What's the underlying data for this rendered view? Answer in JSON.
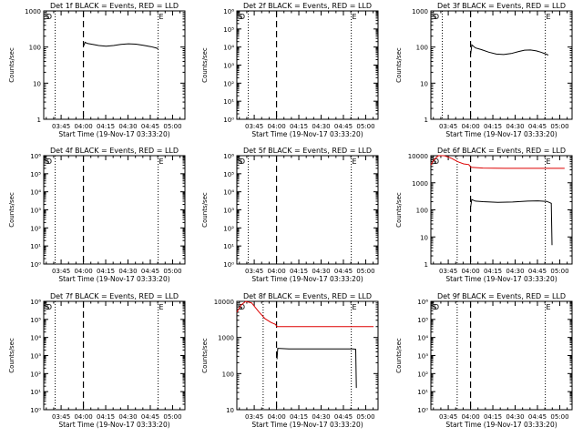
{
  "x_tick_labels": [
    "03:45",
    "04:00",
    "04:15",
    "04:30",
    "04:45",
    "05:00"
  ],
  "x_axis_label": "Start Time (19-Nov-17 03:33:20)",
  "y_axis_label": "Counts/sec",
  "colors": {
    "events": "#000000",
    "lld": "#dd0000",
    "axes": "#000000"
  },
  "chart_data": [
    {
      "type": "line",
      "title": "Det 1f BLACK = Events, RED = LLD",
      "yscale": "log",
      "x_unit": "minutes after 03:33:20",
      "xlim": [
        0,
        95
      ],
      "ylim": [
        1,
        1000
      ],
      "y_tick_labels": [
        "1",
        "10",
        "100",
        "1000"
      ],
      "dotted_lines_x": [
        7.7,
        77
      ],
      "dashed_line_x": [
        26.7
      ],
      "markers": [
        {
          "x": 0.8,
          "label": "S"
        },
        {
          "x": 1.8,
          "label": "D"
        },
        {
          "x": 77.5,
          "label": "E"
        }
      ],
      "series": [
        {
          "color": "black",
          "points": [
            [
              27.0,
              110
            ],
            [
              27.8,
              135
            ],
            [
              29.5,
              125
            ],
            [
              33,
              118
            ],
            [
              37,
              110
            ],
            [
              42,
              106
            ],
            [
              47,
              110
            ],
            [
              52,
              118
            ],
            [
              57,
              123
            ],
            [
              62,
              120
            ],
            [
              67,
              112
            ],
            [
              72,
              103
            ],
            [
              75.5,
              95
            ],
            [
              77,
              90
            ]
          ]
        }
      ]
    },
    {
      "type": "line",
      "title": "Det 2f BLACK = Events, RED = LLD",
      "yscale": "log",
      "x_unit": "minutes after 03:33:20",
      "xlim": [
        0,
        95
      ],
      "ylim": [
        1,
        1000000
      ],
      "y_tick_labels": [
        "10⁰",
        "10¹",
        "10²",
        "10³",
        "10⁴",
        "10⁵",
        "10⁶"
      ],
      "dotted_lines_x": [
        7.7,
        77
      ],
      "dashed_line_x": [
        26.7
      ],
      "markers": [
        {
          "x": 0.8,
          "label": "S"
        },
        {
          "x": 1.8,
          "label": "D"
        },
        {
          "x": 77.5,
          "label": "E"
        }
      ],
      "series": []
    },
    {
      "type": "line",
      "title": "Det 3f BLACK = Events, RED = LLD",
      "yscale": "log",
      "x_unit": "minutes after 03:33:20",
      "xlim": [
        0,
        95
      ],
      "ylim": [
        1,
        1000
      ],
      "y_tick_labels": [
        "1",
        "10",
        "100",
        "1000"
      ],
      "dotted_lines_x": [
        7.7,
        77
      ],
      "dashed_line_x": [
        26.7
      ],
      "markers": [
        {
          "x": 0.8,
          "label": "S"
        },
        {
          "x": 1.8,
          "label": "D"
        },
        {
          "x": 77.5,
          "label": "E"
        }
      ],
      "series": [
        {
          "color": "black",
          "points": [
            [
              26.8,
              65
            ],
            [
              27.6,
              115
            ],
            [
              30,
              95
            ],
            [
              34,
              85
            ],
            [
              39,
              72
            ],
            [
              44,
              64
            ],
            [
              49,
              62
            ],
            [
              54,
              66
            ],
            [
              59,
              75
            ],
            [
              63,
              82
            ],
            [
              67,
              83
            ],
            [
              71,
              78
            ],
            [
              74,
              72
            ],
            [
              77,
              65
            ],
            [
              79,
              60
            ]
          ]
        }
      ]
    },
    {
      "type": "line",
      "title": "Det 4f BLACK = Events, RED = LLD",
      "yscale": "log",
      "x_unit": "minutes after 03:33:20",
      "xlim": [
        0,
        95
      ],
      "ylim": [
        1,
        1000000
      ],
      "y_tick_labels": [
        "10⁰",
        "10¹",
        "10²",
        "10³",
        "10⁴",
        "10⁵",
        "10⁶"
      ],
      "dotted_lines_x": [
        7.7,
        77
      ],
      "dashed_line_x": [
        26.7
      ],
      "markers": [
        {
          "x": 0.8,
          "label": "S"
        },
        {
          "x": 1.8,
          "label": "D"
        },
        {
          "x": 77.5,
          "label": "E"
        }
      ],
      "series": []
    },
    {
      "type": "line",
      "title": "Det 5f BLACK = Events, RED = LLD",
      "yscale": "log",
      "x_unit": "minutes after 03:33:20",
      "xlim": [
        0,
        95
      ],
      "ylim": [
        1,
        1000000
      ],
      "y_tick_labels": [
        "10⁰",
        "10¹",
        "10²",
        "10³",
        "10⁴",
        "10⁵",
        "10⁶"
      ],
      "dotted_lines_x": [
        7.7,
        77
      ],
      "dashed_line_x": [
        26.7
      ],
      "markers": [
        {
          "x": 0.8,
          "label": "S"
        },
        {
          "x": 1.8,
          "label": "D"
        },
        {
          "x": 77.5,
          "label": "E"
        }
      ],
      "series": []
    },
    {
      "type": "line",
      "title": "Det 6f BLACK = Events, RED = LLD",
      "yscale": "log",
      "x_unit": "minutes after 03:33:20",
      "xlim": [
        0,
        95
      ],
      "ylim": [
        1,
        10000
      ],
      "y_tick_labels": [
        "1",
        "10",
        "100",
        "1000",
        "10000"
      ],
      "dotted_lines_x": [
        17.7,
        77
      ],
      "dashed_line_x": [
        26.7
      ],
      "markers": [
        {
          "x": 0.8,
          "label": "S"
        },
        {
          "x": 1.8,
          "label": "D"
        },
        {
          "x": 77.5,
          "label": "E"
        }
      ],
      "series": [
        {
          "color": "red",
          "points": [
            [
              0,
              4500
            ],
            [
              2,
              7000
            ],
            [
              5,
              10000
            ],
            [
              9,
              11000
            ],
            [
              14,
              8000
            ],
            [
              18,
              6000
            ],
            [
              22,
              5000
            ],
            [
              25.5,
              4700
            ],
            [
              27,
              3700
            ],
            [
              35,
              3500
            ],
            [
              50,
              3400
            ],
            [
              65,
              3400
            ],
            [
              79,
              3400
            ],
            [
              90,
              3400
            ]
          ]
        },
        {
          "color": "black",
          "points": [
            [
              26.8,
              130
            ],
            [
              27.5,
              240
            ],
            [
              30,
              210
            ],
            [
              35,
              200
            ],
            [
              45,
              190
            ],
            [
              55,
              195
            ],
            [
              65,
              210
            ],
            [
              72,
              215
            ],
            [
              78,
              205
            ],
            [
              81,
              175
            ],
            [
              81.5,
              5
            ]
          ]
        }
      ]
    },
    {
      "type": "line",
      "title": "Det 7f BLACK = Events, RED = LLD",
      "yscale": "log",
      "x_unit": "minutes after 03:33:20",
      "xlim": [
        0,
        95
      ],
      "ylim": [
        1,
        1000000
      ],
      "y_tick_labels": [
        "10⁰",
        "10¹",
        "10²",
        "10³",
        "10⁴",
        "10⁵",
        "10⁶"
      ],
      "dotted_lines_x": [
        7.7,
        77
      ],
      "dashed_line_x": [
        26.7
      ],
      "markers": [
        {
          "x": 0.8,
          "label": "S"
        },
        {
          "x": 1.8,
          "label": "D"
        },
        {
          "x": 77.5,
          "label": "E"
        }
      ],
      "series": []
    },
    {
      "type": "line",
      "title": "Det 8f BLACK = Events, RED = LLD",
      "yscale": "log",
      "x_unit": "minutes after 03:33:20",
      "xlim": [
        0,
        95
      ],
      "ylim": [
        10,
        10000
      ],
      "y_tick_labels": [
        "10",
        "100",
        "1000",
        "10000"
      ],
      "dotted_lines_x": [
        17.7,
        77
      ],
      "dashed_line_x": [
        26.7
      ],
      "markers": [
        {
          "x": 0.8,
          "label": "S"
        },
        {
          "x": 1.8,
          "label": "D"
        },
        {
          "x": 77.5,
          "label": "E"
        }
      ],
      "series": [
        {
          "color": "red",
          "points": [
            [
              0,
              5000
            ],
            [
              3,
              8000
            ],
            [
              6,
              12000
            ],
            [
              10,
              9000
            ],
            [
              15,
              5000
            ],
            [
              19,
              3300
            ],
            [
              23,
              2600
            ],
            [
              26,
              2300
            ],
            [
              27,
              2000
            ],
            [
              40,
              2000
            ],
            [
              60,
              2000
            ],
            [
              80,
              2000
            ],
            [
              92,
              2000
            ]
          ]
        },
        {
          "color": "black",
          "points": [
            [
              27,
              250
            ],
            [
              27.5,
              500
            ],
            [
              35,
              480
            ],
            [
              50,
              480
            ],
            [
              65,
              480
            ],
            [
              78,
              480
            ],
            [
              80,
              470
            ],
            [
              80.4,
              40
            ]
          ]
        }
      ]
    },
    {
      "type": "line",
      "title": "Det 9f BLACK = Events, RED = LLD",
      "yscale": "log",
      "x_unit": "minutes after 03:33:20",
      "xlim": [
        0,
        95
      ],
      "ylim": [
        1,
        1000000
      ],
      "y_tick_labels": [
        "10⁰",
        "10¹",
        "10²",
        "10³",
        "10⁴",
        "10⁵",
        "10⁶"
      ],
      "dotted_lines_x": [
        17.7,
        77
      ],
      "dashed_line_x": [
        26.7
      ],
      "markers": [
        {
          "x": 0.8,
          "label": "S"
        },
        {
          "x": 1.8,
          "label": "D"
        },
        {
          "x": 77.5,
          "label": "E"
        }
      ],
      "series": []
    }
  ]
}
